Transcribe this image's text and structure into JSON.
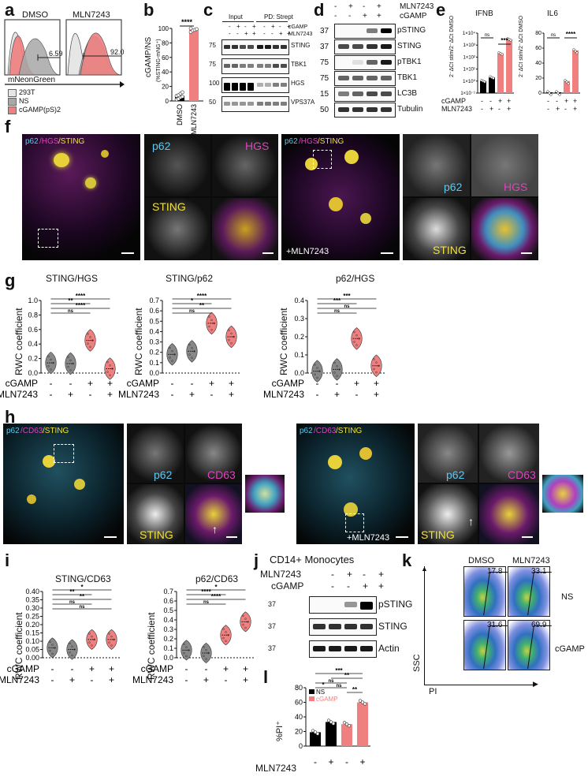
{
  "panel_letters": [
    "a",
    "b",
    "c",
    "d",
    "e",
    "f",
    "g",
    "h",
    "i",
    "j",
    "k",
    "l"
  ],
  "a": {
    "plots": [
      {
        "title": "DMSO",
        "gate_value": "6.59"
      },
      {
        "title": "MLN7243",
        "gate_value": "92.0"
      }
    ],
    "xlabel": "mNeonGreen",
    "legend": [
      {
        "label": "293T",
        "color": "#e6e6e6"
      },
      {
        "label": "NS",
        "color": "#a8a8a8"
      },
      {
        "label": "cGAMP(pS)2",
        "color": "#f08080"
      }
    ]
  },
  "b": {
    "ylabel": "cGAMP/NS",
    "ylabel2": "(%STING-mNG⁺)",
    "yticks": [
      "0",
      "20",
      "40",
      "60",
      "80",
      "100"
    ],
    "sig": "****",
    "colors": {
      "dmso": "#000000",
      "mln": "#f08080"
    }
  },
  "c": {
    "input_label": "Input",
    "pd_label": "PD: Strept",
    "row_labels": [
      "cGAMP",
      "MLN7243"
    ],
    "row_signs": [
      [
        "-",
        "+",
        "-",
        "+",
        "-",
        "+",
        "-",
        "+"
      ],
      [
        "-",
        "-",
        "+",
        "+",
        "-",
        "-",
        "+",
        "+"
      ]
    ],
    "mw": [
      "75",
      "75",
      "100",
      "50"
    ],
    "blots": [
      "STING",
      "TBK1",
      "HGS",
      "VPS37A"
    ]
  },
  "d": {
    "row_labels": [
      "MLN7243",
      "cGAMP"
    ],
    "row_signs": [
      [
        "-",
        "+",
        "-",
        "+"
      ],
      [
        "-",
        "-",
        "+",
        "+"
      ]
    ],
    "mw": [
      "37",
      "37",
      "75",
      "75",
      "15",
      "50"
    ],
    "blots": [
      "pSTING",
      "STING",
      "pTBK1",
      "TBK1",
      "LC3B",
      "Tubulin"
    ]
  },
  "e": {
    "ylabel": "2⁻ΔCt stim/2⁻ΔCt DMSO",
    "plots": [
      {
        "title": "IFNB",
        "yticks": [
          "1×10⁻¹",
          "1×10⁰",
          "1×10¹",
          "1×10²",
          "1×10³",
          "1×10⁴"
        ],
        "sig": [
          "ns",
          "***"
        ]
      },
      {
        "title": "IL6",
        "yticks": [
          "0",
          "20",
          "40",
          "60",
          "80"
        ],
        "sig": [
          "ns",
          "****"
        ]
      }
    ],
    "row_labels": [
      "cGAMP",
      "MLN7243"
    ],
    "row_signs": [
      [
        "-",
        "-",
        "+",
        "+"
      ],
      [
        "-",
        "+",
        "-",
        "+"
      ]
    ]
  },
  "f": {
    "merge_title": [
      "p62",
      "/HGS",
      "/STING"
    ],
    "channels": [
      "p62",
      "HGS",
      "STING"
    ],
    "condition": "+MLN7243"
  },
  "g": {
    "ylabel": "RWC coefficient",
    "plots": [
      {
        "title": "STING/HGS",
        "yticks": [
          "0.0",
          "0.2",
          "0.4",
          "0.6",
          "0.8",
          "1.0"
        ],
        "sig": [
          "****",
          "**",
          "****",
          "ns"
        ]
      },
      {
        "title": "STING/p62",
        "yticks": [
          "0.0",
          "0.1",
          "0.2",
          "0.3",
          "0.4",
          "0.5",
          "0.6",
          "0.7"
        ],
        "sig": [
          "****",
          "*",
          "**",
          "ns"
        ]
      },
      {
        "title": "p62/HGS",
        "yticks": [
          "0.0",
          "0.1",
          "0.2",
          "0.3",
          "0.4"
        ],
        "sig": [
          "***",
          "***",
          "ns",
          "ns"
        ]
      }
    ],
    "row_labels": [
      "cGAMP",
      "MLN7243"
    ],
    "row_signs": [
      [
        "-",
        "-",
        "+",
        "+"
      ],
      [
        "-",
        "+",
        "-",
        "+"
      ]
    ]
  },
  "h": {
    "merge_title": [
      "p62",
      "/CD63",
      "/STING"
    ],
    "channels": [
      "p62",
      "CD63",
      "STING"
    ],
    "condition": "+MLN7243"
  },
  "i": {
    "ylabel": "RWC coefficient",
    "plots": [
      {
        "title": "STING/CD63",
        "yticks": [
          "0.00",
          "0.05",
          "0.10",
          "0.15",
          "0.20",
          "0.25",
          "0.30",
          "0.35",
          "0.40"
        ],
        "sig": [
          "*",
          "**",
          "**",
          "ns",
          "ns"
        ]
      },
      {
        "title": "p62/CD63",
        "yticks": [
          "0.0",
          "0.1",
          "0.2",
          "0.3",
          "0.4",
          "0.5",
          "0.6",
          "0.7"
        ],
        "sig": [
          "*",
          "****",
          "****",
          "ns"
        ]
      }
    ],
    "row_labels": [
      "cGAMP",
      "MLN7243"
    ],
    "row_signs": [
      [
        "-",
        "-",
        "+",
        "+"
      ],
      [
        "-",
        "+",
        "-",
        "+"
      ]
    ]
  },
  "j": {
    "title": "CD14+ Monocytes",
    "row_labels": [
      "MLN7243",
      "cGAMP"
    ],
    "row_signs": [
      [
        "-",
        "+",
        "-",
        "+"
      ],
      [
        "-",
        "-",
        "+",
        "+"
      ]
    ],
    "mw": [
      "37",
      "37",
      "37"
    ],
    "blots": [
      "pSTING",
      "STING",
      "Actin"
    ]
  },
  "k": {
    "cols": [
      "DMSO",
      "MLN7243"
    ],
    "rows": [
      "NS",
      "cGAMP"
    ],
    "values": [
      [
        "17.8",
        "33.1"
      ],
      [
        "31.6",
        "69.9"
      ]
    ],
    "ylabel": "SSC",
    "xlabel": "PI"
  },
  "l": {
    "ylabel": "%PI⁺",
    "yticks": [
      "0",
      "20",
      "40",
      "60",
      "80"
    ],
    "legend": [
      {
        "label": "NS",
        "color": "#000000"
      },
      {
        "label": "cGAMP",
        "color": "#f08080"
      }
    ],
    "sig": [
      "***",
      "**",
      "ns",
      "*",
      "ns",
      "**"
    ],
    "xrow_label": "MLN7243",
    "xrow_signs": [
      "-",
      "+",
      "-",
      "+"
    ]
  },
  "chart_data": [
    {
      "panel": "b",
      "type": "bar",
      "categories": [
        "DMSO",
        "MLN7243"
      ],
      "values": [
        7,
        98
      ],
      "points": [
        [
          2,
          3,
          5,
          6,
          7,
          8,
          10,
          12
        ],
        [
          95,
          97,
          98,
          99,
          100
        ]
      ],
      "ylabel": "cGAMP/NS (%STING-mNG⁺)",
      "ylim": [
        0,
        100
      ]
    },
    {
      "panel": "e-IFNB",
      "type": "bar",
      "categories": [
        "-/-",
        "-/+",
        "+/-",
        "+/+"
      ],
      "values": [
        1,
        2,
        200,
        3000
      ],
      "scale": "log",
      "ylim": [
        0.1,
        10000
      ],
      "colors": [
        "#000000",
        "#000000",
        "#f08080",
        "#f08080"
      ]
    },
    {
      "panel": "e-IL6",
      "type": "bar",
      "categories": [
        "-/-",
        "-/+",
        "+/-",
        "+/+"
      ],
      "values": [
        1,
        1,
        16,
        57
      ],
      "ylim": [
        0,
        80
      ],
      "colors": [
        "#000000",
        "#000000",
        "#f08080",
        "#f08080"
      ]
    },
    {
      "panel": "g-STING/HGS",
      "type": "scatter",
      "categories": [
        "-/-",
        "-/+",
        "+/-",
        "+/+"
      ],
      "values": [
        0.14,
        0.13,
        0.45,
        0.06
      ],
      "ylim": [
        0,
        1.0
      ]
    },
    {
      "panel": "g-STING/p62",
      "type": "scatter",
      "categories": [
        "-/-",
        "-/+",
        "+/-",
        "+/+"
      ],
      "values": [
        0.18,
        0.21,
        0.48,
        0.35
      ],
      "ylim": [
        0,
        0.7
      ]
    },
    {
      "panel": "g-p62/HGS",
      "type": "scatter",
      "categories": [
        "-/-",
        "-/+",
        "+/-",
        "+/+"
      ],
      "values": [
        0.01,
        0.02,
        0.19,
        0.04
      ],
      "ylim": [
        0,
        0.4
      ]
    },
    {
      "panel": "i-STING/CD63",
      "type": "scatter",
      "categories": [
        "-/-",
        "-/+",
        "+/-",
        "+/+"
      ],
      "values": [
        0.06,
        0.05,
        0.11,
        0.11
      ],
      "ylim": [
        0,
        0.4
      ]
    },
    {
      "panel": "i-p62/CD63",
      "type": "scatter",
      "categories": [
        "-/-",
        "-/+",
        "+/-",
        "+/+"
      ],
      "values": [
        0.08,
        0.05,
        0.24,
        0.38
      ],
      "ylim": [
        0,
        0.7
      ]
    },
    {
      "panel": "l",
      "type": "bar",
      "categories": [
        "NS DMSO",
        "NS MLN7243",
        "cGAMP DMSO",
        "cGAMP MLN7243"
      ],
      "values": [
        19,
        33,
        30,
        60
      ],
      "ylim": [
        0,
        80
      ],
      "colors": [
        "#000000",
        "#000000",
        "#f08080",
        "#f08080"
      ]
    }
  ]
}
